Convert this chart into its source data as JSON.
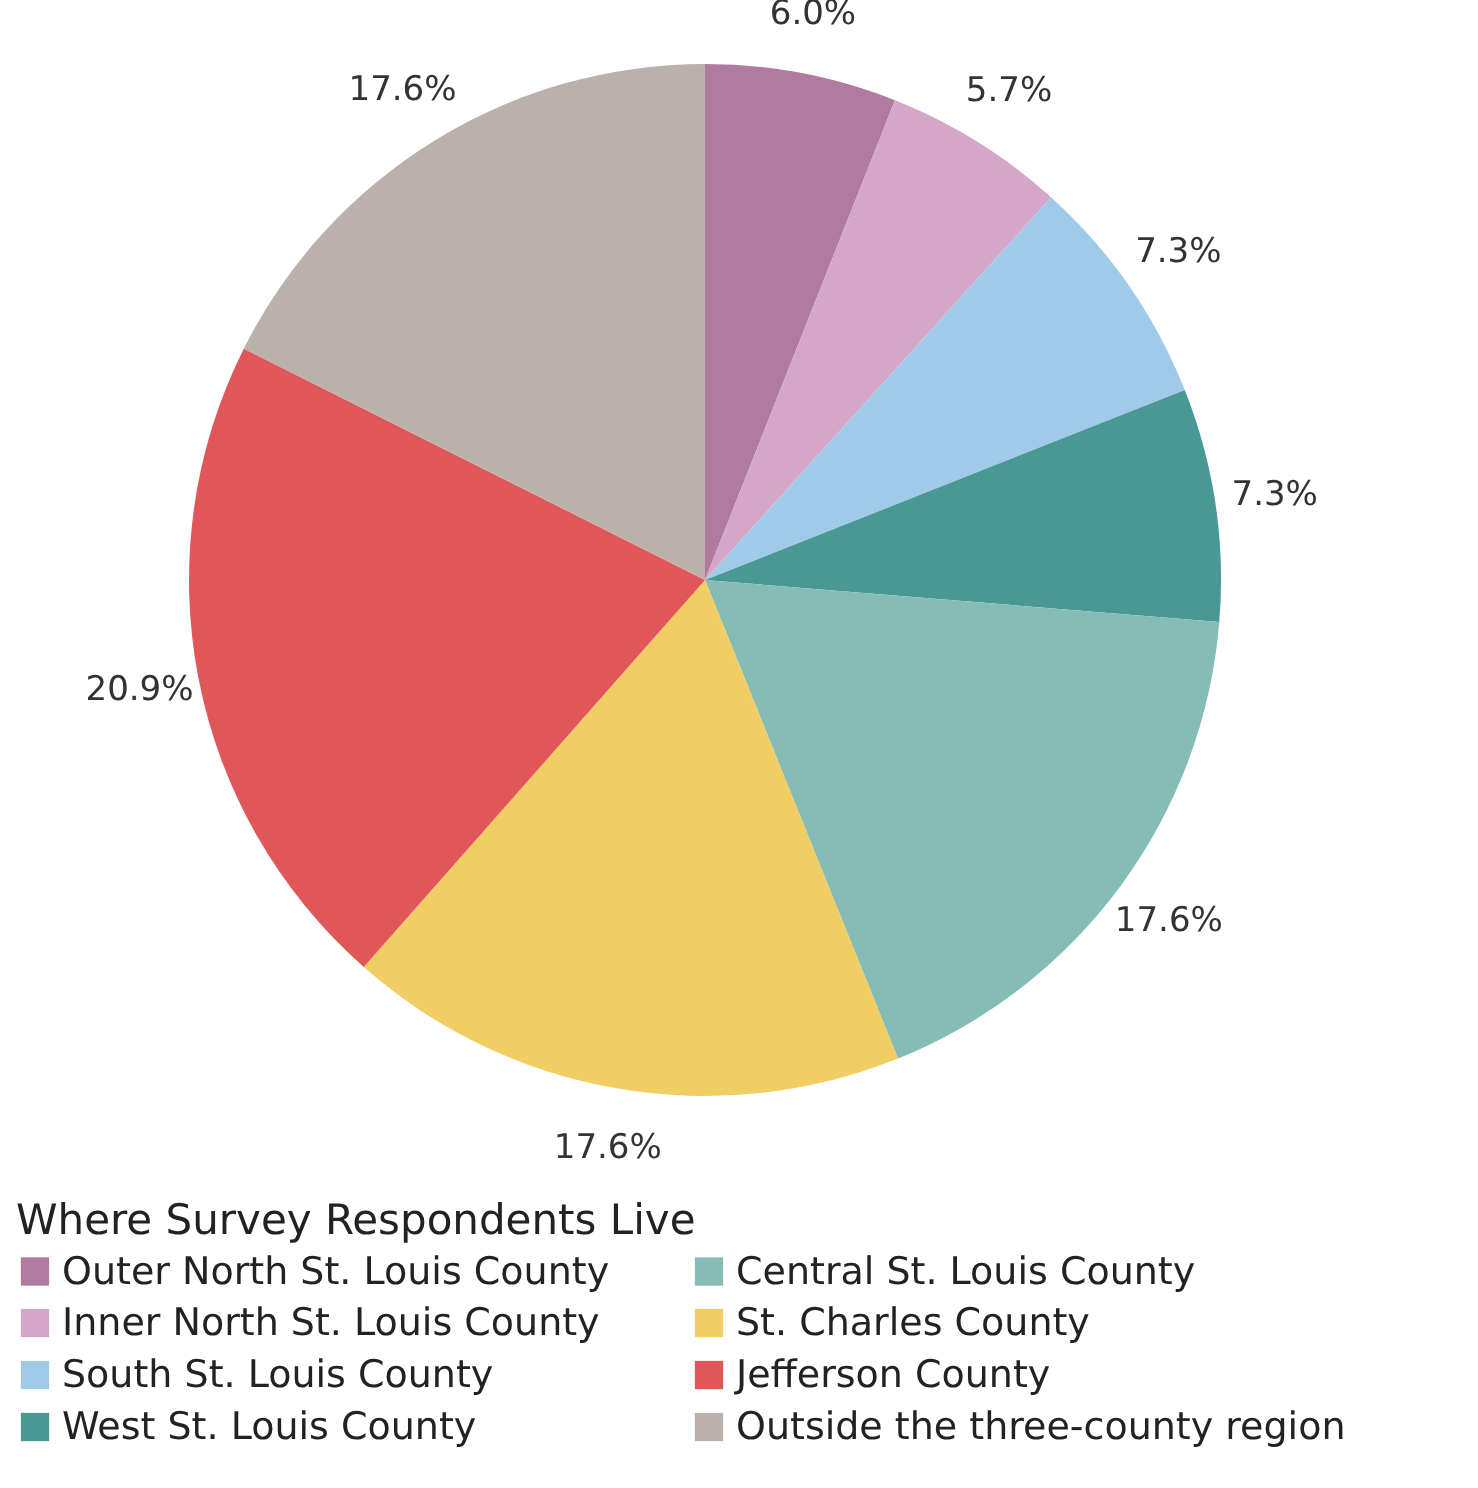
{
  "chart_data": {
    "type": "pie",
    "legend_title": "Where Survey Respondents Live",
    "legend": "bottom",
    "categories": [
      "Outer North St. Louis County",
      "Inner North St. Louis County",
      "South St. Louis County",
      "West St. Louis County",
      "Central St. Louis County",
      "St. Charles County",
      "Jefferson County",
      "Outside the three-county region"
    ],
    "values": [
      6.0,
      5.7,
      7.3,
      7.3,
      17.6,
      17.6,
      20.9,
      17.6
    ],
    "value_labels": [
      "6.0%",
      "5.7%",
      "7.3%",
      "7.3%",
      "17.6%",
      "17.6%",
      "20.9%",
      "17.6%"
    ],
    "colors": [
      "#b07aa1",
      "#d4a6c8",
      "#a0cbe8",
      "#499894",
      "#86bcb6",
      "#f1ce63",
      "#e15759",
      "#bab0ac"
    ]
  }
}
